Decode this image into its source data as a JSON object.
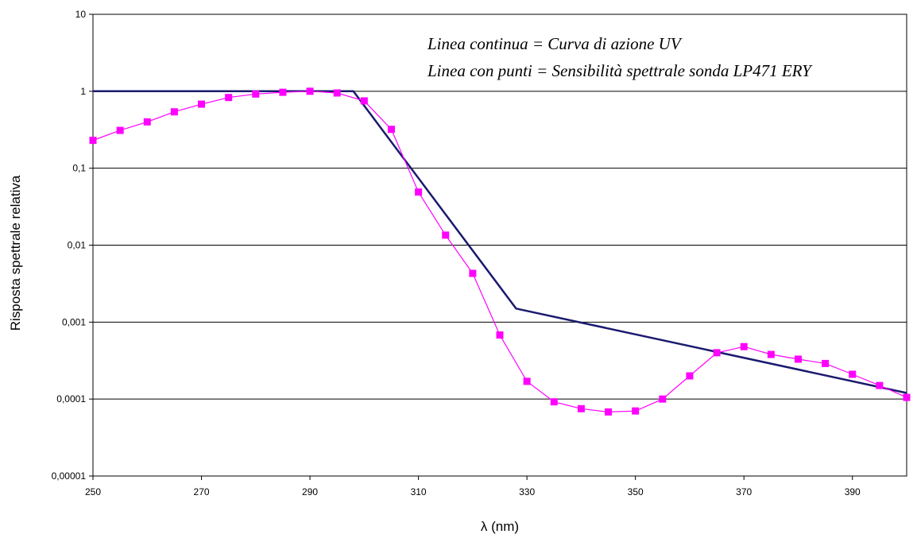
{
  "chart_data": {
    "type": "line",
    "title": "",
    "xlabel": "λ (nm)",
    "ylabel": "Risposta spettrale relativa",
    "xlim": [
      250,
      400
    ],
    "ylim": [
      1e-05,
      10
    ],
    "yscale": "log",
    "grid": "horizontal",
    "x_ticks": [
      "250",
      "270",
      "290",
      "310",
      "330",
      "350",
      "370",
      "390"
    ],
    "x_tick_values": [
      250,
      270,
      290,
      310,
      330,
      350,
      370,
      390
    ],
    "y_ticks": [
      "0,00001",
      "0,0001",
      "0,001",
      "0,01",
      "0,1",
      "1",
      "10"
    ],
    "y_tick_values": [
      1e-05,
      0.0001,
      0.001,
      0.01,
      0.1,
      1,
      10
    ],
    "annotations": [
      "Linea continua = Curva di azione UV",
      "Linea con punti = Sensibilità spettrale sonda LP471 ERY"
    ],
    "series": [
      {
        "color": "#1a1a6e",
        "marker": "none",
        "x": [
          250,
          298,
          328,
          400
        ],
        "y": [
          1,
          1,
          0.0015,
          0.00012
        ]
      },
      {
        "color": "#ff00ff",
        "marker": "square",
        "x": [
          250,
          255,
          260,
          265,
          270,
          275,
          280,
          285,
          290,
          295,
          300,
          305,
          310,
          315,
          320,
          325,
          330,
          335,
          340,
          345,
          350,
          355,
          360,
          365,
          370,
          375,
          380,
          385,
          390,
          395,
          400
        ],
        "y": [
          0.23,
          0.31,
          0.4,
          0.54,
          0.68,
          0.83,
          0.92,
          0.97,
          1.0,
          0.95,
          0.75,
          0.32,
          0.049,
          0.0135,
          0.0043,
          0.00068,
          0.00017,
          9.2e-05,
          7.5e-05,
          6.8e-05,
          7e-05,
          0.0001,
          0.0002,
          0.0004,
          0.00048,
          0.00038,
          0.00033,
          0.00029,
          0.00021,
          0.00015,
          0.000105
        ]
      }
    ]
  }
}
